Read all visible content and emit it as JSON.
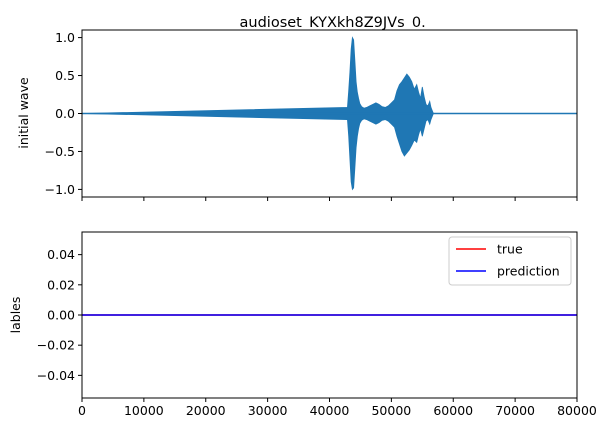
{
  "chart_data": [
    {
      "type": "line",
      "title": "_audioset_KYXkh8Z9JVs_0.",
      "xlabel": "",
      "ylabel": "initial wave",
      "xlim": [
        0,
        80000
      ],
      "ylim": [
        -1.1,
        1.1
      ],
      "x_ticks": [
        0,
        10000,
        20000,
        30000,
        40000,
        50000,
        60000,
        70000,
        80000
      ],
      "x_tick_labels_visible": false,
      "y_ticks": [
        -1.0,
        -0.5,
        0.0,
        0.5,
        1.0
      ],
      "y_tick_labels": [
        "−1.0",
        "−0.5",
        "0.0",
        "0.5",
        "1.0"
      ],
      "grid": false,
      "series": [
        {
          "color": "#1f77b4",
          "baseline": 0.0,
          "envelope": {
            "x": [
              0,
              42900,
              43100,
              43300,
              43500,
              43700,
              43900,
              44100,
              44300,
              44500,
              44700,
              44900,
              45200,
              45600,
              46000,
              46500,
              47000,
              47500,
              48000,
              48500,
              49000,
              49500,
              50000,
              50500,
              50900,
              51300,
              51700,
              52100,
              52500,
              52900,
              53300,
              53700,
              54100,
              54400,
              54700,
              55000,
              55300,
              55600,
              55900,
              56200,
              56400,
              56600,
              56800,
              80000
            ],
            "upper": [
              0.0,
              0.08,
              0.3,
              0.55,
              0.85,
              1.0,
              0.97,
              0.7,
              0.42,
              0.28,
              0.2,
              0.13,
              0.09,
              0.07,
              0.08,
              0.1,
              0.12,
              0.14,
              0.12,
              0.09,
              0.08,
              0.1,
              0.14,
              0.18,
              0.3,
              0.38,
              0.42,
              0.47,
              0.52,
              0.48,
              0.42,
              0.32,
              0.38,
              0.28,
              0.2,
              0.35,
              0.22,
              0.12,
              0.1,
              0.16,
              0.08,
              0.04,
              0.0,
              0.0
            ],
            "lower": [
              0.0,
              -0.08,
              -0.3,
              -0.6,
              -0.9,
              -1.0,
              -0.98,
              -0.72,
              -0.45,
              -0.3,
              -0.2,
              -0.13,
              -0.09,
              -0.07,
              -0.08,
              -0.1,
              -0.12,
              -0.14,
              -0.12,
              -0.09,
              -0.08,
              -0.1,
              -0.14,
              -0.18,
              -0.3,
              -0.4,
              -0.5,
              -0.56,
              -0.52,
              -0.48,
              -0.42,
              -0.35,
              -0.38,
              -0.28,
              -0.2,
              -0.3,
              -0.2,
              -0.1,
              -0.08,
              -0.14,
              -0.08,
              -0.04,
              0.0,
              0.0
            ]
          }
        }
      ]
    },
    {
      "type": "line",
      "title": "",
      "xlabel": "",
      "ylabel": "lables",
      "xlim": [
        0,
        80000
      ],
      "ylim": [
        -0.055,
        0.055
      ],
      "x_ticks": [
        0,
        10000,
        20000,
        30000,
        40000,
        50000,
        60000,
        70000,
        80000
      ],
      "x_tick_labels": [
        "0",
        "10000",
        "20000",
        "30000",
        "40000",
        "50000",
        "60000",
        "70000",
        "80000"
      ],
      "y_ticks": [
        -0.04,
        -0.02,
        0.0,
        0.02,
        0.04
      ],
      "y_tick_labels": [
        "−0.04",
        "−0.02",
        "0.00",
        "0.02",
        "0.04"
      ],
      "grid": false,
      "legend_position": "top-right",
      "series": [
        {
          "name": "true",
          "color": "#ff0000",
          "x": [
            0,
            80000
          ],
          "values": [
            0,
            0
          ]
        },
        {
          "name": "prediction",
          "color": "#0000ff",
          "x": [
            0,
            80000
          ],
          "values": [
            0,
            0
          ]
        }
      ]
    }
  ]
}
